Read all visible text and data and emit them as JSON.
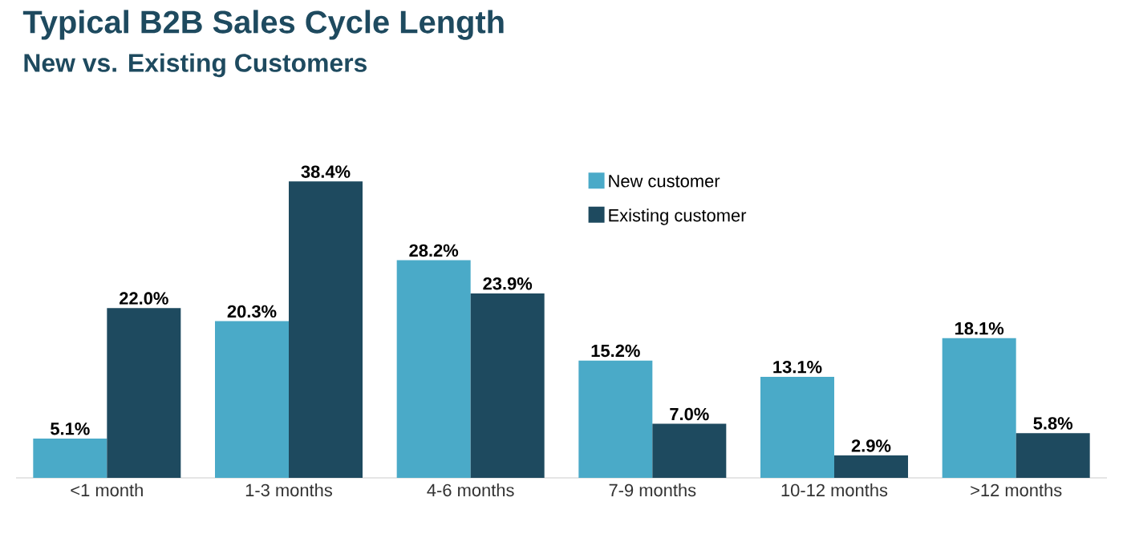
{
  "chart_data": {
    "type": "bar",
    "title": "Typical B2B Sales Cycle Length",
    "subtitle": "New vs. Existing Customers",
    "categories": [
      "<1 month",
      "1-3 months",
      "4-6 months",
      "7-9 months",
      "10-12 months",
      ">12 months"
    ],
    "series": [
      {
        "name": "New customer",
        "color": "#4aaac8",
        "values": [
          5.1,
          20.3,
          28.2,
          15.2,
          13.1,
          18.1
        ],
        "value_labels": [
          "5.1%",
          "20.3%",
          "28.2%",
          "15.2%",
          "13.1%",
          "18.1%"
        ]
      },
      {
        "name": "Existing customer",
        "color": "#1e4a5f",
        "values": [
          22.0,
          38.4,
          23.9,
          7.0,
          2.9,
          5.8
        ],
        "value_labels": [
          "22.0%",
          "38.4%",
          "23.9%",
          "7.0%",
          "2.9%",
          "5.8%"
        ]
      }
    ],
    "legend": "top"
  }
}
